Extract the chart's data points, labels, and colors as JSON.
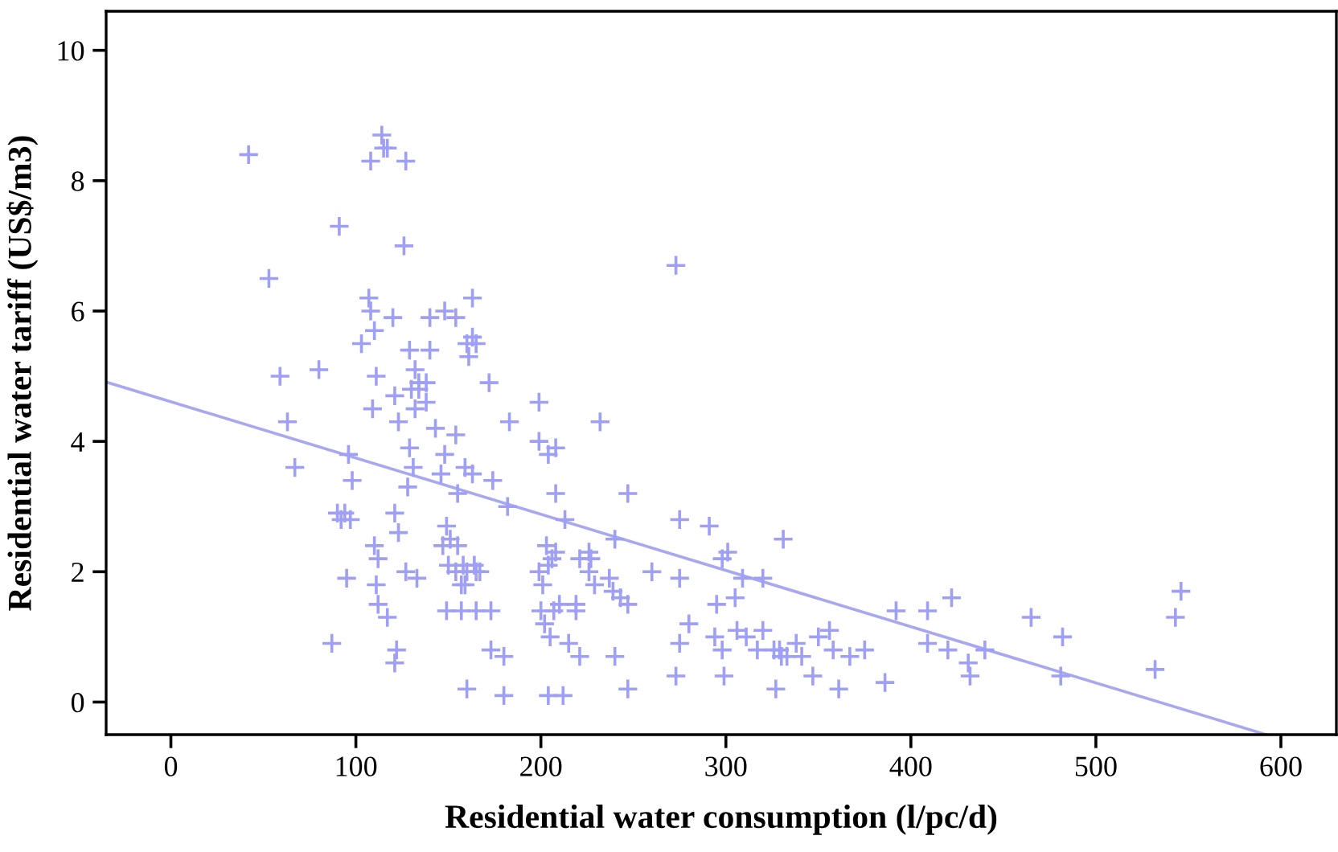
{
  "chart_data": {
    "type": "scatter",
    "xlabel": "Residential water consumption (l/pc/d)",
    "ylabel": "Residential water tariff (US$/m3)",
    "xlim": [
      -35,
      630
    ],
    "ylim": [
      -0.5,
      10.6
    ],
    "xticks": [
      0,
      100,
      200,
      300,
      400,
      500,
      600
    ],
    "yticks": [
      0,
      2,
      4,
      6,
      8,
      10
    ],
    "grid": false,
    "series": [
      {
        "marker": "cross",
        "color": "#9f9ff5",
        "x": [
          42,
          53,
          59,
          63,
          67,
          80,
          87,
          91,
          90,
          92,
          94,
          96,
          98,
          95,
          97,
          103,
          107,
          108,
          110,
          111,
          109,
          110,
          112,
          111,
          112,
          117,
          114,
          115,
          117,
          108,
          127,
          126,
          120,
          121,
          123,
          121,
          123,
          121,
          122,
          129,
          132,
          130,
          134,
          132,
          134,
          129,
          131,
          127,
          133,
          128,
          140,
          148,
          154,
          163,
          160,
          163,
          161,
          165,
          140,
          138,
          138,
          143,
          148,
          154,
          146,
          155,
          159,
          163,
          149,
          151,
          147,
          150,
          155,
          158,
          154,
          160,
          165,
          164,
          167,
          149,
          157,
          173,
          157,
          159,
          160,
          165,
          172,
          174,
          183,
          182,
          173,
          180,
          180,
          199,
          204,
          212,
          199,
          204,
          208,
          208,
          213,
          203,
          208,
          204,
          206,
          199,
          201,
          200,
          202,
          205,
          207,
          210,
          215,
          221,
          219,
          219,
          226,
          221,
          227,
          226,
          232,
          229,
          237,
          239,
          240,
          243,
          247,
          247,
          240,
          247,
          260,
          273,
          275,
          275,
          273,
          291,
          298,
          301,
          295,
          305,
          309,
          299,
          306,
          280,
          275,
          294,
          298,
          320,
          331,
          311,
          317,
          320,
          327,
          338,
          341,
          330,
          326,
          329,
          333,
          347,
          350,
          356,
          358,
          367,
          375,
          386,
          361,
          392,
          409,
          422,
          409,
          420,
          440,
          432,
          431,
          465,
          482,
          481,
          532,
          543,
          546
        ],
        "values": [
          8.4,
          6.5,
          5.0,
          4.3,
          3.6,
          5.1,
          0.9,
          7.3,
          2.9,
          2.8,
          2.9,
          3.8,
          3.4,
          1.9,
          2.8,
          5.5,
          6.2,
          6.0,
          5.7,
          5.0,
          4.5,
          2.4,
          2.2,
          1.8,
          1.5,
          1.3,
          8.7,
          8.5,
          8.5,
          8.3,
          8.3,
          7.0,
          5.9,
          4.7,
          4.3,
          2.9,
          2.6,
          0.6,
          0.8,
          5.4,
          5.1,
          4.8,
          4.8,
          4.5,
          4.9,
          3.9,
          3.6,
          2.0,
          1.9,
          3.3,
          5.9,
          6.0,
          5.9,
          6.2,
          5.5,
          5.6,
          5.3,
          5.5,
          5.4,
          4.9,
          4.6,
          4.2,
          3.8,
          4.1,
          3.5,
          3.2,
          3.6,
          3.5,
          2.7,
          2.5,
          2.4,
          2.1,
          2.4,
          2.1,
          2.0,
          2.0,
          2.0,
          2.1,
          2.0,
          1.4,
          1.4,
          1.4,
          1.8,
          1.8,
          0.2,
          1.4,
          4.9,
          3.4,
          4.3,
          3.0,
          0.8,
          0.7,
          0.1,
          4.6,
          0.1,
          0.1,
          4.0,
          3.8,
          3.9,
          3.2,
          2.8,
          2.4,
          2.3,
          2.1,
          2.2,
          2.0,
          1.8,
          1.4,
          1.2,
          1.0,
          1.4,
          1.5,
          0.9,
          0.7,
          1.5,
          1.4,
          2.3,
          2.2,
          2.2,
          2.0,
          4.3,
          1.8,
          1.9,
          1.7,
          2.5,
          1.6,
          3.2,
          1.5,
          0.7,
          0.2,
          2.0,
          6.7,
          2.8,
          1.9,
          0.4,
          2.7,
          2.2,
          2.3,
          1.5,
          1.6,
          1.9,
          0.4,
          1.1,
          1.2,
          0.9,
          1.0,
          0.8,
          1.9,
          2.5,
          1.0,
          0.8,
          1.1,
          0.2,
          0.9,
          0.7,
          0.7,
          0.8,
          0.8,
          0.7,
          0.4,
          1.0,
          1.1,
          0.8,
          0.7,
          0.8,
          0.3,
          0.2,
          1.4,
          1.4,
          1.6,
          0.9,
          0.8,
          0.8,
          0.4,
          0.6,
          1.3,
          1.0,
          0.4,
          0.5,
          1.3,
          1.7
        ]
      },
      {
        "type": "line",
        "marker": "none",
        "line_style": "solid",
        "color": "#a8a8f0",
        "x": [
          -35,
          592
        ],
        "values": [
          4.91,
          -0.5
        ]
      }
    ]
  }
}
